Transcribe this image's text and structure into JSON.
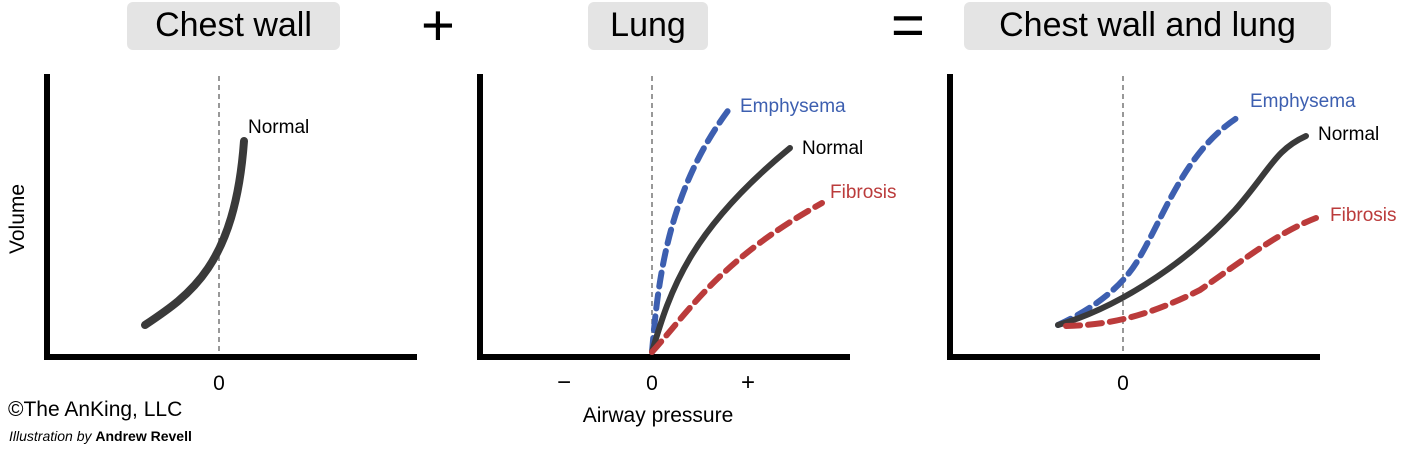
{
  "headers": {
    "chest_wall": "Chest wall",
    "plus": "+",
    "lung": "Lung",
    "equals": "=",
    "combined": "Chest wall and lung"
  },
  "axes": {
    "y_label": "Volume",
    "x_label": "Airway pressure",
    "zero": "0",
    "minus": "−",
    "plus": "+"
  },
  "curves": {
    "normal": "Normal",
    "emphysema": "Emphysema",
    "fibrosis": "Fibrosis"
  },
  "colors": {
    "normal": "#3a3a3a",
    "emphysema": "#3d5fb0",
    "fibrosis": "#bb3b3b",
    "header_bg": "#e4e4e4"
  },
  "credit": {
    "copyright": "©The AnKing, LLC",
    "illustration_prefix": "Illustration by",
    "author": "Andrew Revell"
  }
}
